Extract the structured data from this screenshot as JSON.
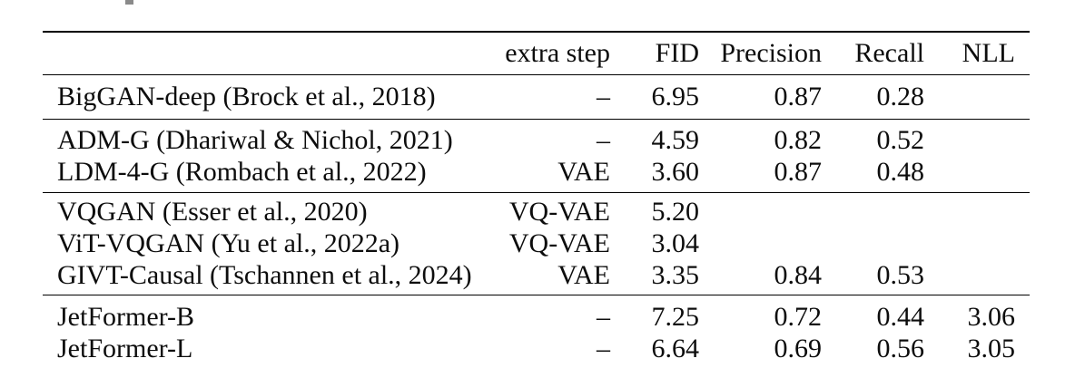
{
  "colors": {
    "background": "#ffffff",
    "text": "#0d0d0d",
    "rule": "#000000",
    "caption_artifact": "#8a8a8a"
  },
  "table": {
    "header": {
      "model": "",
      "extra_step": "extra step",
      "fid": "FID",
      "precision": "Precision",
      "recall": "Recall",
      "nll": "NLL"
    },
    "cell_names": [
      "model-name-cell",
      "extra-step-cell",
      "fid-cell",
      "precision-cell",
      "recall-cell",
      "nll-cell",
      "spacer-cell"
    ],
    "sections": [
      {
        "rows": [
          [
            "BigGAN-deep (Brock et al., 2018)",
            "–",
            "6.95",
            "0.87",
            "0.28",
            "",
            ""
          ]
        ]
      },
      {
        "rows": [
          [
            "ADM-G (Dhariwal & Nichol, 2021)",
            "–",
            "4.59",
            "0.82",
            "0.52",
            "",
            ""
          ],
          [
            "LDM-4-G (Rombach et al., 2022)",
            "VAE",
            "3.60",
            "0.87",
            "0.48",
            "",
            ""
          ]
        ]
      },
      {
        "rows": [
          [
            "VQGAN (Esser et al., 2020)",
            "VQ-VAE",
            "5.20",
            "",
            "",
            "",
            ""
          ],
          [
            "ViT-VQGAN (Yu et al., 2022a)",
            "VQ-VAE",
            "3.04",
            "",
            "",
            "",
            ""
          ],
          [
            "GIVT-Causal (Tschannen et al., 2024)",
            "VAE",
            "3.35",
            "0.84",
            "0.53",
            "",
            ""
          ]
        ]
      },
      {
        "rows": [
          [
            "JetFormer-B",
            "–",
            "7.25",
            "0.72",
            "0.44",
            "3.06",
            ""
          ],
          [
            "JetFormer-L",
            "–",
            "6.64",
            "0.69",
            "0.56",
            "3.05",
            ""
          ]
        ]
      }
    ]
  }
}
